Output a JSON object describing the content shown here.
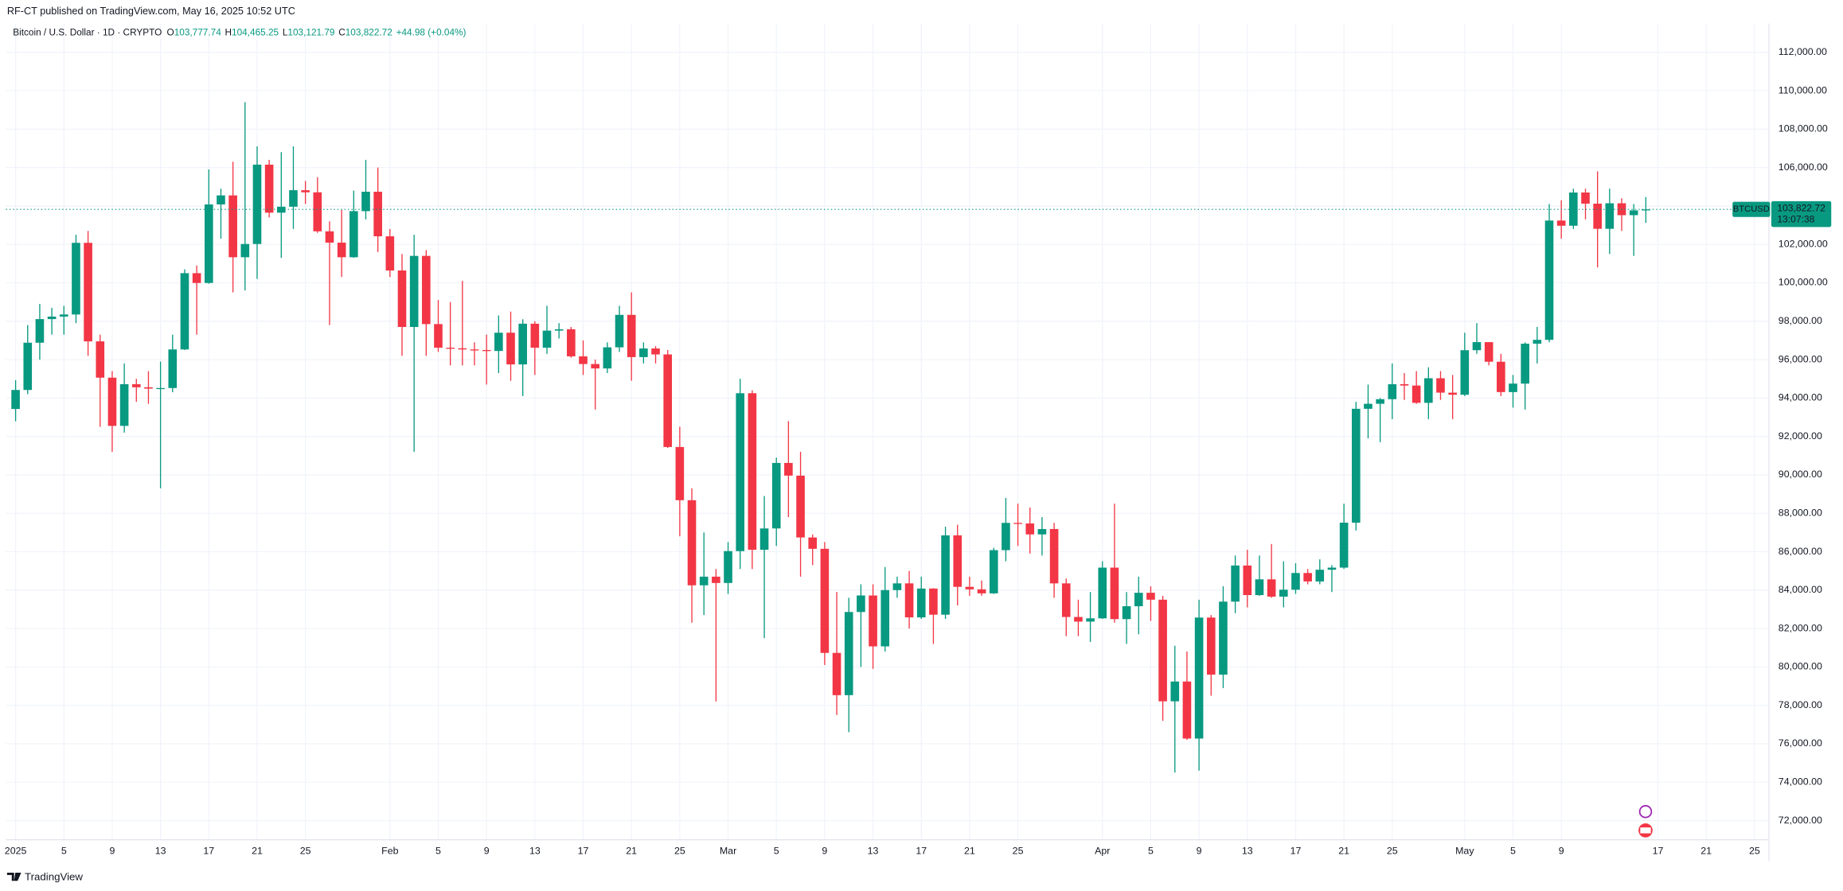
{
  "publisher_line": "RF-CT published on TradingView.com, May 16, 2025 10:52 UTC",
  "footer": {
    "brand": "TradingView"
  },
  "header": {
    "symbol": "Bitcoin / U.S. Dollar · 1D · CRYPTO",
    "fields": [
      {
        "label": "O",
        "value": "103,777.74"
      },
      {
        "label": "H",
        "value": "104,465.25"
      },
      {
        "label": "L",
        "value": "103,121.79"
      },
      {
        "label": "C",
        "value": "103,822.72"
      }
    ],
    "change": "+44.98 (+0.04%)"
  },
  "chart_data": {
    "type": "candlestick",
    "up_color": "#089981",
    "down_color": "#f23645",
    "grid": true,
    "price_tag": {
      "symbol": "BTCUSD",
      "value": 103822.72,
      "label": "103,822.72",
      "countdown": "13:07:38"
    },
    "xlim": [
      "2024-12-31",
      "2025-05-26"
    ],
    "ylim": [
      71000,
      113500
    ],
    "yticks": [
      {
        "value": 72000,
        "label": "72,000.00"
      },
      {
        "value": 74000,
        "label": "74,000.00"
      },
      {
        "value": 76000,
        "label": "76,000.00"
      },
      {
        "value": 78000,
        "label": "78,000.00"
      },
      {
        "value": 80000,
        "label": "80,000.00"
      },
      {
        "value": 82000,
        "label": "82,000.00"
      },
      {
        "value": 84000,
        "label": "84,000.00"
      },
      {
        "value": 86000,
        "label": "86,000.00"
      },
      {
        "value": 88000,
        "label": "88,000.00"
      },
      {
        "value": 90000,
        "label": "90,000.00"
      },
      {
        "value": 92000,
        "label": "92,000.00"
      },
      {
        "value": 94000,
        "label": "94,000.00"
      },
      {
        "value": 96000,
        "label": "96,000.00"
      },
      {
        "value": 98000,
        "label": "98,000.00"
      },
      {
        "value": 100000,
        "label": "100,000.00"
      },
      {
        "value": 102000,
        "label": "102,000.00"
      },
      {
        "value": 104000,
        "label": "104,000.00"
      },
      {
        "value": 106000,
        "label": "106,000.00"
      },
      {
        "value": 108000,
        "label": "108,000.00"
      },
      {
        "value": 110000,
        "label": "110,000.00"
      },
      {
        "value": 112000,
        "label": "112,000.00"
      }
    ],
    "xticks": [
      {
        "value": "2025-01-01",
        "label": "2025"
      },
      {
        "value": "2025-01-05",
        "label": "5"
      },
      {
        "value": "2025-01-09",
        "label": "9"
      },
      {
        "value": "2025-01-13",
        "label": "13"
      },
      {
        "value": "2025-01-17",
        "label": "17"
      },
      {
        "value": "2025-01-21",
        "label": "21"
      },
      {
        "value": "2025-01-25",
        "label": "25"
      },
      {
        "value": "2025-02-01",
        "label": "Feb"
      },
      {
        "value": "2025-02-05",
        "label": "5"
      },
      {
        "value": "2025-02-09",
        "label": "9"
      },
      {
        "value": "2025-02-13",
        "label": "13"
      },
      {
        "value": "2025-02-17",
        "label": "17"
      },
      {
        "value": "2025-02-21",
        "label": "21"
      },
      {
        "value": "2025-02-25",
        "label": "25"
      },
      {
        "value": "2025-03-01",
        "label": "Mar"
      },
      {
        "value": "2025-03-05",
        "label": "5"
      },
      {
        "value": "2025-03-09",
        "label": "9"
      },
      {
        "value": "2025-03-13",
        "label": "13"
      },
      {
        "value": "2025-03-17",
        "label": "17"
      },
      {
        "value": "2025-03-21",
        "label": "21"
      },
      {
        "value": "2025-03-25",
        "label": "25"
      },
      {
        "value": "2025-04-01",
        "label": "Apr"
      },
      {
        "value": "2025-04-05",
        "label": "5"
      },
      {
        "value": "2025-04-09",
        "label": "9"
      },
      {
        "value": "2025-04-13",
        "label": "13"
      },
      {
        "value": "2025-04-17",
        "label": "17"
      },
      {
        "value": "2025-04-21",
        "label": "21"
      },
      {
        "value": "2025-04-25",
        "label": "25"
      },
      {
        "value": "2025-05-01",
        "label": "May"
      },
      {
        "value": "2025-05-05",
        "label": "5"
      },
      {
        "value": "2025-05-09",
        "label": "9"
      },
      {
        "value": "2025-05-17",
        "label": "17"
      },
      {
        "value": "2025-05-21",
        "label": "21"
      },
      {
        "value": "2025-05-25",
        "label": "25"
      }
    ],
    "x": [
      "2025-01-01",
      "2025-01-02",
      "2025-01-03",
      "2025-01-04",
      "2025-01-05",
      "2025-01-06",
      "2025-01-07",
      "2025-01-08",
      "2025-01-09",
      "2025-01-10",
      "2025-01-11",
      "2025-01-12",
      "2025-01-13",
      "2025-01-14",
      "2025-01-15",
      "2025-01-16",
      "2025-01-17",
      "2025-01-18",
      "2025-01-19",
      "2025-01-20",
      "2025-01-21",
      "2025-01-22",
      "2025-01-23",
      "2025-01-24",
      "2025-01-25",
      "2025-01-26",
      "2025-01-27",
      "2025-01-28",
      "2025-01-29",
      "2025-01-30",
      "2025-01-31",
      "2025-02-01",
      "2025-02-02",
      "2025-02-03",
      "2025-02-04",
      "2025-02-05",
      "2025-02-06",
      "2025-02-07",
      "2025-02-08",
      "2025-02-09",
      "2025-02-10",
      "2025-02-11",
      "2025-02-12",
      "2025-02-13",
      "2025-02-14",
      "2025-02-15",
      "2025-02-16",
      "2025-02-17",
      "2025-02-18",
      "2025-02-19",
      "2025-02-20",
      "2025-02-21",
      "2025-02-22",
      "2025-02-23",
      "2025-02-24",
      "2025-02-25",
      "2025-02-26",
      "2025-02-27",
      "2025-02-28",
      "2025-03-01",
      "2025-03-02",
      "2025-03-03",
      "2025-03-04",
      "2025-03-05",
      "2025-03-06",
      "2025-03-07",
      "2025-03-08",
      "2025-03-09",
      "2025-03-10",
      "2025-03-11",
      "2025-03-12",
      "2025-03-13",
      "2025-03-14",
      "2025-03-15",
      "2025-03-16",
      "2025-03-17",
      "2025-03-18",
      "2025-03-19",
      "2025-03-20",
      "2025-03-21",
      "2025-03-22",
      "2025-03-23",
      "2025-03-24",
      "2025-03-25",
      "2025-03-26",
      "2025-03-27",
      "2025-03-28",
      "2025-03-29",
      "2025-03-30",
      "2025-03-31",
      "2025-04-01",
      "2025-04-02",
      "2025-04-03",
      "2025-04-04",
      "2025-04-05",
      "2025-04-06",
      "2025-04-07",
      "2025-04-08",
      "2025-04-09",
      "2025-04-10",
      "2025-04-11",
      "2025-04-12",
      "2025-04-13",
      "2025-04-14",
      "2025-04-15",
      "2025-04-16",
      "2025-04-17",
      "2025-04-18",
      "2025-04-19",
      "2025-04-20",
      "2025-04-21",
      "2025-04-22",
      "2025-04-23",
      "2025-04-24",
      "2025-04-25",
      "2025-04-26",
      "2025-04-27",
      "2025-04-28",
      "2025-04-29",
      "2025-04-30",
      "2025-05-01",
      "2025-05-02",
      "2025-05-03",
      "2025-05-04",
      "2025-05-05",
      "2025-05-06",
      "2025-05-07",
      "2025-05-08",
      "2025-05-09",
      "2025-05-10",
      "2025-05-11",
      "2025-05-12",
      "2025-05-13",
      "2025-05-14",
      "2025-05-15",
      "2025-05-16"
    ],
    "ohlc": [
      [
        93430,
        94930,
        92790,
        94420
      ],
      [
        94420,
        97800,
        94200,
        96880
      ],
      [
        96880,
        98900,
        96000,
        98110
      ],
      [
        98110,
        98700,
        97300,
        98240
      ],
      [
        98240,
        98800,
        97300,
        98350
      ],
      [
        98350,
        102500,
        97900,
        102080
      ],
      [
        102080,
        102700,
        96200,
        96950
      ],
      [
        96950,
        97300,
        92500,
        95060
      ],
      [
        95060,
        95400,
        91200,
        92550
      ],
      [
        92550,
        95800,
        92200,
        94720
      ],
      [
        94720,
        95000,
        93800,
        94560
      ],
      [
        94560,
        95400,
        93700,
        94490
      ],
      [
        94490,
        95900,
        89300,
        94520
      ],
      [
        94520,
        97300,
        94300,
        96530
      ],
      [
        96530,
        100700,
        96500,
        100500
      ],
      [
        100500,
        100900,
        97300,
        99990
      ],
      [
        99990,
        105900,
        99950,
        104080
      ],
      [
        104080,
        104900,
        102300,
        104550
      ],
      [
        104550,
        106300,
        99500,
        101330
      ],
      [
        101330,
        109400,
        99600,
        102020
      ],
      [
        102020,
        107100,
        100200,
        106150
      ],
      [
        106150,
        106400,
        103400,
        103650
      ],
      [
        103650,
        106800,
        101300,
        103960
      ],
      [
        103960,
        107100,
        102800,
        104820
      ],
      [
        104820,
        105300,
        104100,
        104710
      ],
      [
        104710,
        105500,
        102600,
        102680
      ],
      [
        102680,
        103200,
        97800,
        102090
      ],
      [
        102090,
        103800,
        100300,
        101330
      ],
      [
        101330,
        104800,
        101300,
        103730
      ],
      [
        103730,
        106400,
        103300,
        104740
      ],
      [
        104740,
        106000,
        101600,
        102420
      ],
      [
        102420,
        102800,
        100300,
        100640
      ],
      [
        100640,
        101500,
        96200,
        97700
      ],
      [
        97700,
        102500,
        91200,
        101400
      ],
      [
        101400,
        101700,
        96200,
        97850
      ],
      [
        97850,
        99100,
        96400,
        96620
      ],
      [
        96620,
        99000,
        95700,
        96590
      ],
      [
        96590,
        100100,
        95700,
        96530
      ],
      [
        96530,
        96900,
        95700,
        96500
      ],
      [
        96500,
        97300,
        94700,
        96450
      ],
      [
        96450,
        98300,
        95300,
        97400
      ],
      [
        97400,
        98500,
        94900,
        95750
      ],
      [
        95750,
        98100,
        94100,
        97870
      ],
      [
        97870,
        98000,
        95200,
        96620
      ],
      [
        96620,
        98800,
        96300,
        97510
      ],
      [
        97510,
        97900,
        97100,
        97580
      ],
      [
        97580,
        97700,
        96100,
        96170
      ],
      [
        96170,
        97000,
        95200,
        95770
      ],
      [
        95770,
        96000,
        93400,
        95540
      ],
      [
        95540,
        96900,
        95300,
        96640
      ],
      [
        96640,
        98800,
        96400,
        98330
      ],
      [
        98330,
        99500,
        94900,
        96130
      ],
      [
        96130,
        96900,
        95800,
        96580
      ],
      [
        96580,
        96700,
        95800,
        96270
      ],
      [
        96270,
        96500,
        91400,
        91450
      ],
      [
        91450,
        92500,
        86800,
        88680
      ],
      [
        88680,
        89300,
        82300,
        84250
      ],
      [
        84250,
        87000,
        82700,
        84700
      ],
      [
        84700,
        85100,
        78200,
        84370
      ],
      [
        84370,
        86500,
        83800,
        86030
      ],
      [
        86030,
        95000,
        85100,
        94250
      ],
      [
        94250,
        94400,
        85100,
        86100
      ],
      [
        86100,
        88900,
        81500,
        87210
      ],
      [
        87210,
        90900,
        86300,
        90620
      ],
      [
        90620,
        92800,
        87800,
        89960
      ],
      [
        89960,
        91200,
        84700,
        86740
      ],
      [
        86740,
        86900,
        85300,
        86150
      ],
      [
        86150,
        86500,
        80100,
        80730
      ],
      [
        80730,
        83900,
        77500,
        78530
      ],
      [
        78530,
        83600,
        76600,
        82860
      ],
      [
        82860,
        84300,
        80000,
        83720
      ],
      [
        83720,
        84300,
        79900,
        81070
      ],
      [
        81070,
        85200,
        80800,
        84000
      ],
      [
        84000,
        84700,
        83600,
        84350
      ],
      [
        84350,
        85000,
        82000,
        82580
      ],
      [
        82580,
        84700,
        82500,
        84080
      ],
      [
        84080,
        84100,
        81200,
        82720
      ],
      [
        82720,
        87300,
        82500,
        86850
      ],
      [
        86850,
        87400,
        83200,
        84170
      ],
      [
        84170,
        84700,
        83700,
        84040
      ],
      [
        84040,
        84500,
        83700,
        83830
      ],
      [
        83830,
        86200,
        83800,
        86080
      ],
      [
        86080,
        88800,
        85500,
        87500
      ],
      [
        87500,
        88500,
        86300,
        87470
      ],
      [
        87470,
        88300,
        85900,
        86900
      ],
      [
        86900,
        87800,
        85800,
        87180
      ],
      [
        87180,
        87500,
        83600,
        84350
      ],
      [
        84350,
        84600,
        81600,
        82600
      ],
      [
        82600,
        83500,
        81600,
        82360
      ],
      [
        82360,
        83900,
        81300,
        82530
      ],
      [
        82530,
        85500,
        82500,
        85170
      ],
      [
        85170,
        88500,
        82300,
        82490
      ],
      [
        82490,
        83900,
        81200,
        83160
      ],
      [
        83160,
        84700,
        81700,
        83860
      ],
      [
        83860,
        84200,
        82400,
        83500
      ],
      [
        83500,
        83700,
        77200,
        78210
      ],
      [
        78210,
        81100,
        74500,
        79240
      ],
      [
        79240,
        80800,
        76200,
        76270
      ],
      [
        76270,
        83500,
        74600,
        82570
      ],
      [
        82570,
        82700,
        78500,
        79600
      ],
      [
        79600,
        84200,
        78900,
        83400
      ],
      [
        83400,
        85800,
        82800,
        85280
      ],
      [
        85280,
        86100,
        83100,
        83740
      ],
      [
        83740,
        85800,
        83700,
        84560
      ],
      [
        84560,
        86400,
        83600,
        83660
      ],
      [
        83660,
        85500,
        83100,
        84020
      ],
      [
        84020,
        85400,
        83800,
        84890
      ],
      [
        84890,
        85100,
        84300,
        84450
      ],
      [
        84450,
        85600,
        84300,
        85060
      ],
      [
        85060,
        85300,
        83900,
        85170
      ],
      [
        85170,
        88500,
        85100,
        87510
      ],
      [
        87510,
        93800,
        87100,
        93440
      ],
      [
        93440,
        94700,
        91900,
        93700
      ],
      [
        93700,
        94000,
        91700,
        93940
      ],
      [
        93940,
        95800,
        92900,
        94720
      ],
      [
        94720,
        95300,
        93900,
        94650
      ],
      [
        94650,
        95400,
        93700,
        93750
      ],
      [
        93750,
        95600,
        92900,
        95030
      ],
      [
        95030,
        95400,
        93900,
        94280
      ],
      [
        94280,
        95200,
        92900,
        94170
      ],
      [
        94170,
        97400,
        94100,
        96490
      ],
      [
        96490,
        97900,
        96300,
        96910
      ],
      [
        96910,
        96900,
        95700,
        95890
      ],
      [
        95890,
        96300,
        94100,
        94310
      ],
      [
        94310,
        95200,
        93500,
        94750
      ],
      [
        94750,
        96900,
        93400,
        96830
      ],
      [
        96830,
        97700,
        95800,
        97030
      ],
      [
        97030,
        104100,
        96900,
        103240
      ],
      [
        103240,
        104300,
        102300,
        102970
      ],
      [
        102970,
        104900,
        102800,
        104700
      ],
      [
        104700,
        104900,
        103300,
        104120
      ],
      [
        104120,
        105800,
        100800,
        102810
      ],
      [
        102810,
        104900,
        101500,
        104140
      ],
      [
        104140,
        104400,
        102700,
        103520
      ],
      [
        103520,
        104100,
        101400,
        103770
      ],
      [
        103777.74,
        104465.25,
        103121.79,
        103822.72
      ]
    ]
  }
}
